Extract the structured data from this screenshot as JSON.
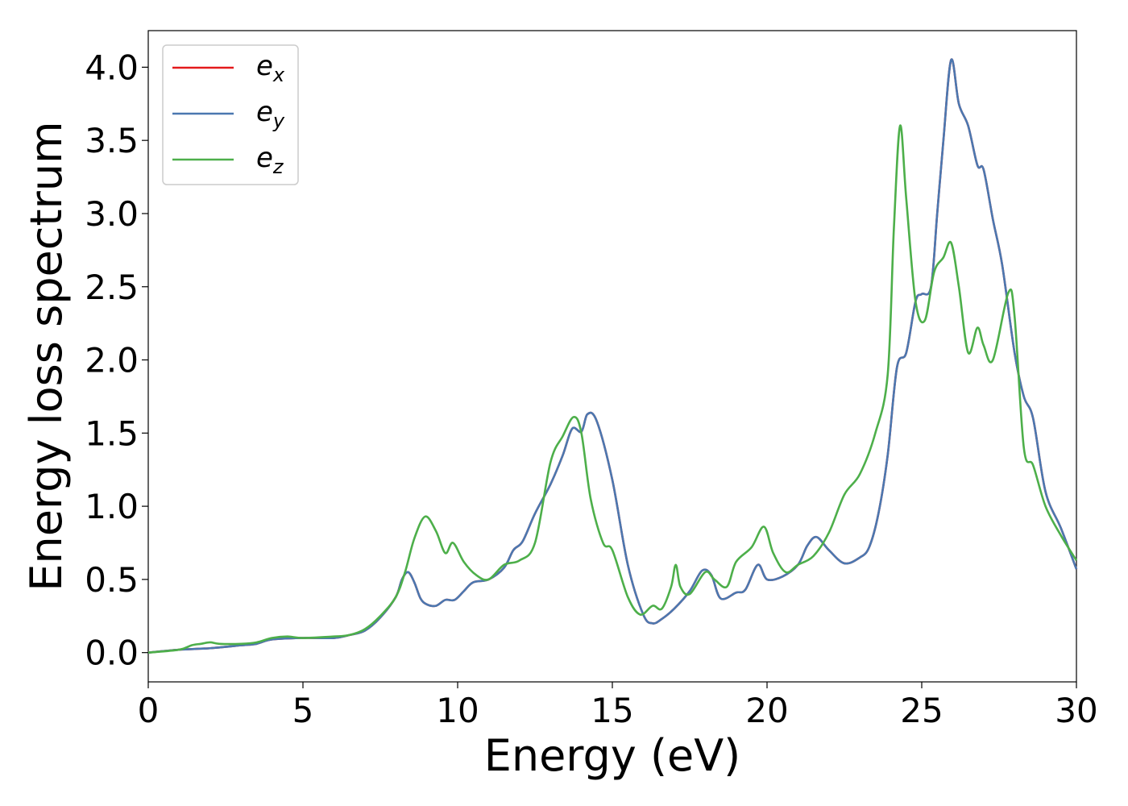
{
  "colors": {
    "ex": "#e41a1c",
    "ey": "#4b78b0",
    "ez": "#4daf4a",
    "axis": "#000000",
    "legend_border": "#cccccc"
  },
  "chart_data": {
    "type": "line",
    "title": "",
    "xlabel": "Energy (eV)",
    "ylabel": "Energy loss spectrum",
    "xlim": [
      0,
      30
    ],
    "ylim": [
      -0.2,
      4.25
    ],
    "xticks": [
      0,
      5,
      10,
      15,
      20,
      25,
      30
    ],
    "xtick_labels": [
      "0",
      "5",
      "10",
      "15",
      "20",
      "25",
      "30"
    ],
    "yticks": [
      0.0,
      0.5,
      1.0,
      1.5,
      2.0,
      2.5,
      3.0,
      3.5,
      4.0
    ],
    "ytick_labels": [
      "0.0",
      "0.5",
      "1.0",
      "1.5",
      "2.0",
      "2.5",
      "3.0",
      "3.5",
      "4.0"
    ],
    "grid": false,
    "legend_position": "top-left",
    "series": [
      {
        "name": "ex",
        "label_base": "e",
        "label_sub": "x",
        "color_key": "ex",
        "x": [
          0,
          1,
          2,
          3,
          3.5,
          4,
          5,
          6,
          6.5,
          7,
          7.5,
          8,
          8.2,
          8.4,
          8.6,
          8.8,
          9,
          9.3,
          9.6,
          9.9,
          10.2,
          10.5,
          11,
          11.5,
          11.8,
          12.1,
          12.5,
          13,
          13.4,
          13.7,
          14,
          14.2,
          14.5,
          15,
          15.5,
          16,
          16.3,
          16.6,
          17,
          17.5,
          17.9,
          18.2,
          18.5,
          19,
          19.3,
          19.7,
          20,
          20.5,
          21,
          21.3,
          21.6,
          22,
          22.5,
          23,
          23.3,
          23.6,
          23.9,
          24.2,
          24.5,
          24.8,
          25,
          25.3,
          25.5,
          25.7,
          25.95,
          26.2,
          26.5,
          26.8,
          27,
          27.3,
          27.6,
          28,
          28.3,
          28.6,
          29,
          29.5,
          30
        ],
        "y": [
          0,
          0.02,
          0.03,
          0.05,
          0.06,
          0.09,
          0.1,
          0.1,
          0.12,
          0.15,
          0.24,
          0.38,
          0.5,
          0.55,
          0.48,
          0.37,
          0.33,
          0.32,
          0.36,
          0.36,
          0.42,
          0.48,
          0.5,
          0.58,
          0.7,
          0.76,
          0.95,
          1.15,
          1.35,
          1.53,
          1.51,
          1.63,
          1.58,
          1.18,
          0.6,
          0.26,
          0.2,
          0.23,
          0.3,
          0.42,
          0.56,
          0.53,
          0.37,
          0.41,
          0.43,
          0.6,
          0.5,
          0.52,
          0.6,
          0.73,
          0.79,
          0.7,
          0.61,
          0.65,
          0.72,
          0.95,
          1.35,
          1.95,
          2.05,
          2.4,
          2.45,
          2.5,
          3.0,
          3.5,
          4.05,
          3.75,
          3.6,
          3.33,
          3.3,
          2.96,
          2.65,
          2.05,
          1.75,
          1.6,
          1.1,
          0.85,
          0.57
        ]
      },
      {
        "name": "ey",
        "label_base": "e",
        "label_sub": "y",
        "color_key": "ey",
        "x": [
          0,
          1,
          2,
          3,
          3.5,
          4,
          5,
          6,
          6.5,
          7,
          7.5,
          8,
          8.2,
          8.4,
          8.6,
          8.8,
          9,
          9.3,
          9.6,
          9.9,
          10.2,
          10.5,
          11,
          11.5,
          11.8,
          12.1,
          12.5,
          13,
          13.4,
          13.7,
          14,
          14.2,
          14.5,
          15,
          15.5,
          16,
          16.3,
          16.6,
          17,
          17.5,
          17.9,
          18.2,
          18.5,
          19,
          19.3,
          19.7,
          20,
          20.5,
          21,
          21.3,
          21.6,
          22,
          22.5,
          23,
          23.3,
          23.6,
          23.9,
          24.2,
          24.5,
          24.8,
          25,
          25.3,
          25.5,
          25.7,
          25.95,
          26.2,
          26.5,
          26.8,
          27,
          27.3,
          27.6,
          28,
          28.3,
          28.6,
          29,
          29.5,
          30
        ],
        "y": [
          0,
          0.02,
          0.03,
          0.05,
          0.06,
          0.09,
          0.1,
          0.1,
          0.12,
          0.15,
          0.24,
          0.38,
          0.5,
          0.55,
          0.48,
          0.37,
          0.33,
          0.32,
          0.36,
          0.36,
          0.42,
          0.48,
          0.5,
          0.58,
          0.7,
          0.76,
          0.95,
          1.15,
          1.35,
          1.53,
          1.51,
          1.63,
          1.58,
          1.18,
          0.6,
          0.26,
          0.2,
          0.23,
          0.3,
          0.42,
          0.56,
          0.53,
          0.37,
          0.41,
          0.43,
          0.6,
          0.5,
          0.52,
          0.6,
          0.73,
          0.79,
          0.7,
          0.61,
          0.65,
          0.72,
          0.95,
          1.35,
          1.95,
          2.05,
          2.4,
          2.45,
          2.5,
          3.0,
          3.5,
          4.05,
          3.75,
          3.6,
          3.33,
          3.3,
          2.96,
          2.65,
          2.05,
          1.75,
          1.6,
          1.1,
          0.85,
          0.57
        ]
      },
      {
        "name": "ez",
        "label_base": "e",
        "label_sub": "z",
        "color_key": "ez",
        "x": [
          0,
          1,
          1.4,
          1.7,
          2,
          2.3,
          3,
          3.5,
          4,
          4.5,
          5,
          6,
          6.5,
          7,
          7.5,
          8,
          8.3,
          8.6,
          8.95,
          9.3,
          9.6,
          9.85,
          10.2,
          10.6,
          11,
          11.5,
          12,
          12.5,
          13,
          13.4,
          13.75,
          14,
          14.3,
          14.7,
          15,
          15.5,
          15.9,
          16.3,
          16.6,
          16.9,
          17.05,
          17.2,
          17.5,
          18,
          18.3,
          18.7,
          19,
          19.5,
          19.9,
          20.2,
          20.6,
          21,
          21.5,
          22,
          22.5,
          23,
          23.5,
          23.9,
          24.1,
          24.3,
          24.5,
          24.8,
          25.1,
          25.4,
          25.7,
          25.95,
          26.2,
          26.5,
          26.8,
          27,
          27.3,
          27.8,
          28,
          28.3,
          28.6,
          29,
          29.5,
          30
        ],
        "y": [
          0,
          0.02,
          0.05,
          0.06,
          0.07,
          0.06,
          0.06,
          0.07,
          0.1,
          0.11,
          0.1,
          0.11,
          0.12,
          0.16,
          0.25,
          0.38,
          0.55,
          0.78,
          0.93,
          0.83,
          0.68,
          0.75,
          0.62,
          0.53,
          0.5,
          0.6,
          0.63,
          0.75,
          1.3,
          1.48,
          1.61,
          1.5,
          1.05,
          0.75,
          0.7,
          0.38,
          0.26,
          0.32,
          0.3,
          0.45,
          0.6,
          0.45,
          0.4,
          0.55,
          0.5,
          0.45,
          0.62,
          0.72,
          0.86,
          0.68,
          0.55,
          0.6,
          0.66,
          0.82,
          1.08,
          1.22,
          1.5,
          1.9,
          2.9,
          3.6,
          3.1,
          2.4,
          2.27,
          2.6,
          2.7,
          2.8,
          2.5,
          2.05,
          2.22,
          2.1,
          2.0,
          2.46,
          2.3,
          1.4,
          1.28,
          1.0,
          0.8,
          0.63
        ]
      }
    ]
  }
}
